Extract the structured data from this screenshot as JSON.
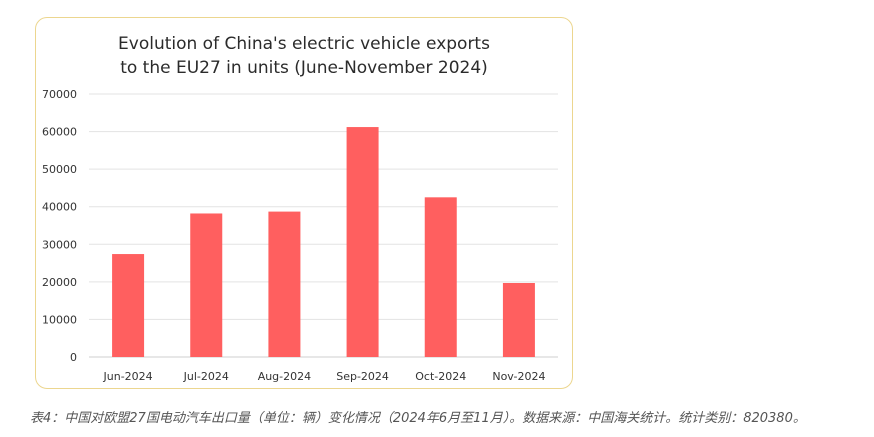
{
  "chart_data": {
    "type": "bar",
    "title_lines": [
      "Evolution of China's electric vehicle exports",
      "to the EU27 in units (June-November 2024)"
    ],
    "categories": [
      "Jun-2024",
      "Jul-2024",
      "Aug-2024",
      "Sep-2024",
      "Oct-2024",
      "Nov-2024"
    ],
    "values": [
      27400,
      38200,
      38700,
      61200,
      42500,
      19700
    ],
    "ylim": [
      0,
      70000
    ],
    "yticks": [
      "0",
      "10000",
      "20000",
      "30000",
      "40000",
      "50000",
      "60000",
      "70000"
    ],
    "grid": true,
    "bar_color": "#ff5f5f",
    "border_color": "#ecd68f",
    "grid_color": "#e3e3e3"
  },
  "caption": "表4：中国对欧盟27国电动汽车出口量（单位：辆）变化情况（2024年6月至11月）。数据来源：中国海关统计。统计类别：820380。"
}
